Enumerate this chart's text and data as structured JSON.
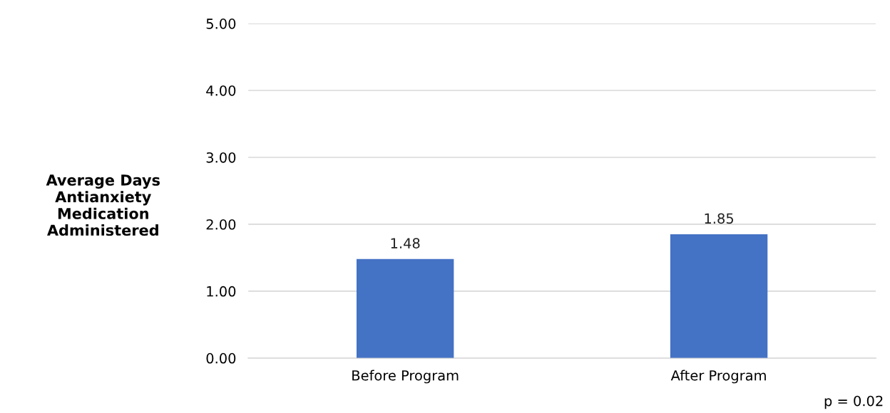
{
  "chart_data": {
    "type": "bar",
    "ylabel": "Average Days\nAntianxiety\nMedication\nAdministered",
    "categories": [
      "Before Program",
      "After Program"
    ],
    "series": [
      {
        "color": "#4472c4",
        "values": [
          1.48,
          1.85
        ]
      }
    ],
    "data_labels": true,
    "ylim": [
      0,
      5
    ],
    "yticks": [
      {
        "value": 0,
        "label": "0.00"
      },
      {
        "value": 1,
        "label": "1.00"
      },
      {
        "value": 2,
        "label": "2.00"
      },
      {
        "value": 3,
        "label": "3.00"
      },
      {
        "value": 4,
        "label": "4.00"
      },
      {
        "value": 5,
        "label": "5.00"
      }
    ],
    "grid": "y",
    "annotations": [
      "p = 0.02"
    ]
  }
}
